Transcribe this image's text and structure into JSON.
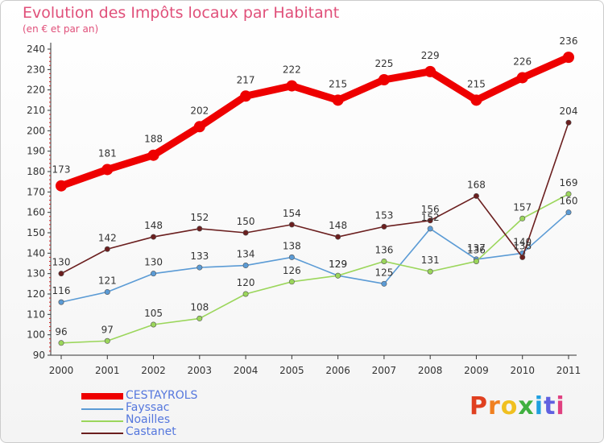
{
  "title": "Evolution des Impôts locaux par Habitant",
  "subtitle": "(en € et par an)",
  "logo": {
    "text": "Proxiti",
    "colors": [
      "#e04020",
      "#f08020",
      "#f0c020",
      "#40b040",
      "#20a0e0",
      "#6060e0",
      "#e04080"
    ]
  },
  "chart_data": {
    "type": "line",
    "title": "Evolution des Impôts locaux par Habitant",
    "subtitle": "(en € et par an)",
    "x": [
      "2000",
      "2001",
      "2002",
      "2003",
      "2004",
      "2005",
      "2006",
      "2007",
      "2008",
      "2009",
      "2010",
      "2011"
    ],
    "ylim": [
      90,
      240
    ],
    "yticks": [
      90,
      100,
      110,
      120,
      130,
      140,
      150,
      160,
      170,
      180,
      190,
      200,
      210,
      220,
      230,
      240
    ],
    "grid": false,
    "legend_position": "bottom-left",
    "series": [
      {
        "name": "CESTAYROLS",
        "color": "#ee0000",
        "values": [
          173,
          181,
          188,
          202,
          217,
          222,
          215,
          225,
          229,
          215,
          226,
          236
        ]
      },
      {
        "name": "Fayssac",
        "color": "#5b9bd5",
        "values": [
          116,
          121,
          130,
          133,
          134,
          138,
          129,
          125,
          152,
          137,
          140,
          160
        ]
      },
      {
        "name": "Noailles",
        "color": "#9bd65b",
        "values": [
          96,
          97,
          105,
          108,
          120,
          126,
          129,
          136,
          131,
          136,
          157,
          169
        ]
      },
      {
        "name": "Castanet",
        "color": "#6b1f1f",
        "values": [
          130,
          142,
          148,
          152,
          150,
          154,
          148,
          153,
          156,
          168,
          138,
          204
        ]
      }
    ]
  }
}
